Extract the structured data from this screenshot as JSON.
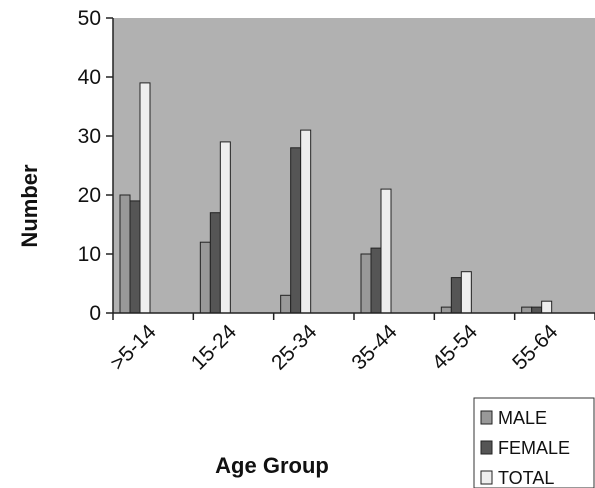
{
  "chart_data": {
    "type": "bar",
    "xlabel": "Age Group",
    "ylabel": "Number",
    "ylim": [
      0,
      50
    ],
    "yticks": [
      0,
      10,
      20,
      30,
      40,
      50
    ],
    "categories": [
      ">5-14",
      "15-24",
      "25-34",
      "35-44",
      "45-54",
      "55-64"
    ],
    "series": [
      {
        "name": "MALE",
        "values": [
          20,
          12,
          3,
          10,
          1,
          1
        ],
        "color": "#999999"
      },
      {
        "name": "FEMALE",
        "values": [
          19,
          17,
          28,
          11,
          6,
          1
        ],
        "color": "#555555"
      },
      {
        "name": "TOTAL",
        "values": [
          39,
          29,
          31,
          21,
          7,
          2
        ],
        "color": "#eeeeee"
      }
    ],
    "grid": false,
    "legend": "bottom-right",
    "plot_background": "#b1b1b1"
  }
}
